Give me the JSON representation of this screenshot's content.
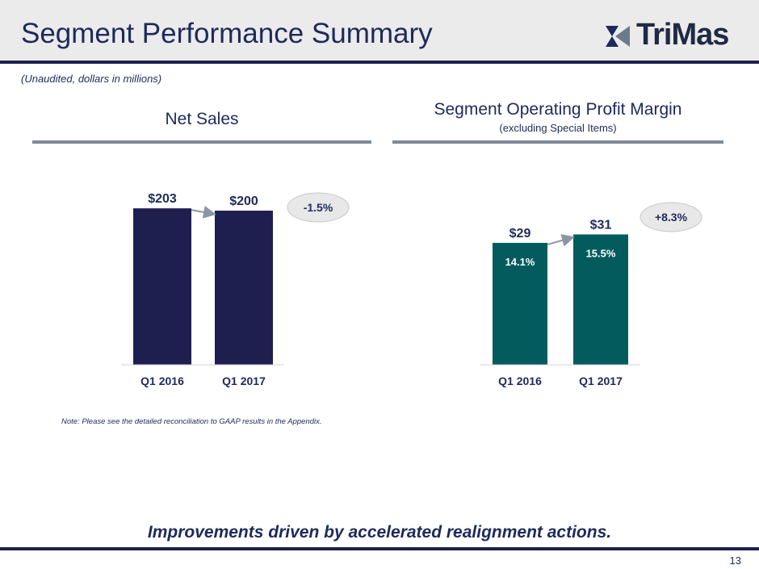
{
  "header": {
    "title": "Segment Performance Summary",
    "logo_text": "TriMas",
    "colors": {
      "bar": "#e9e9e9",
      "accent": "#1e1f4f"
    }
  },
  "subtitle": "(Unaudited, dollars in millions)",
  "chart_data": [
    {
      "type": "bar",
      "title": "Net Sales",
      "subtitle": "",
      "categories": [
        "Q1 2016",
        "Q1 2017"
      ],
      "values": [
        203,
        200
      ],
      "value_labels": [
        "$203",
        "$200"
      ],
      "inner_labels": [],
      "change_label": "-1.5%",
      "color": "#1e1f4f"
    },
    {
      "type": "bar",
      "title": "Segment Operating Profit Margin",
      "subtitle": "(excluding Special Items)",
      "categories": [
        "Q1 2016",
        "Q1 2017"
      ],
      "values": [
        29,
        31
      ],
      "value_labels": [
        "$29",
        "$31"
      ],
      "inner_labels": [
        "14.1%",
        "15.5%"
      ],
      "change_label": "+8.3%",
      "color": "#035b5e"
    }
  ],
  "note": "Note: Please see the detailed reconciliation to GAAP results in the Appendix.",
  "footer": {
    "message": "Improvements driven by accelerated realignment actions.",
    "page_number": "13"
  }
}
